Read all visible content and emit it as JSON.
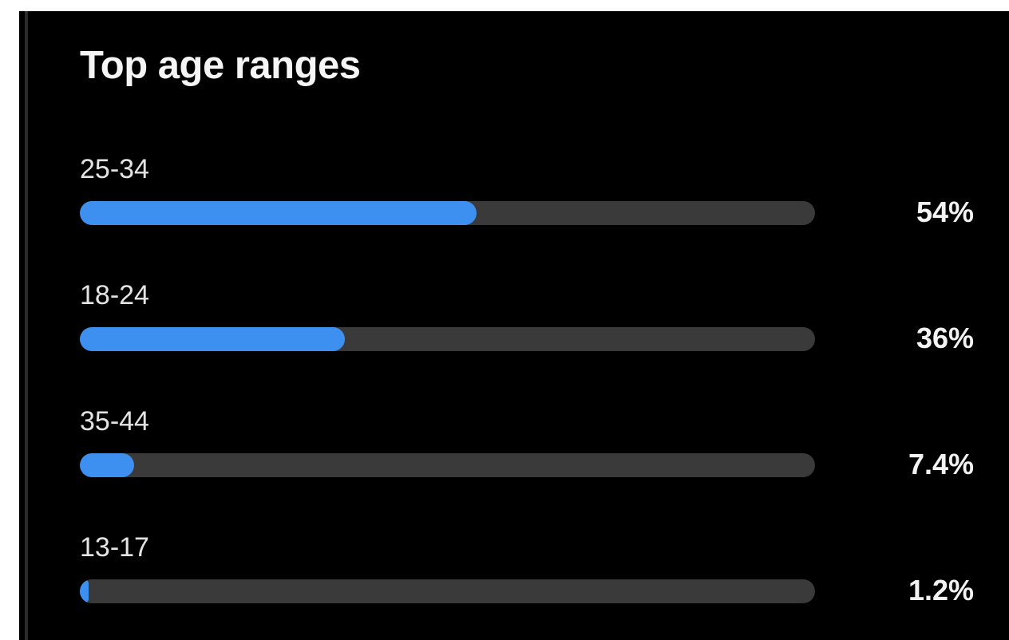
{
  "card": {
    "title": "Top age ranges"
  },
  "colors": {
    "background": "#000000",
    "bar_fill": "#3d8ff0",
    "bar_track": "#3a3a3a",
    "text": "#f2f2f2"
  },
  "chart_data": {
    "type": "bar",
    "orientation": "horizontal",
    "title": "Top age ranges",
    "categories": [
      "25-34",
      "18-24",
      "35-44",
      "13-17"
    ],
    "values": [
      54,
      36,
      7.4,
      1.2
    ],
    "value_labels": [
      "54%",
      "36%",
      "7.4%",
      "1.2%"
    ],
    "xlim": [
      0,
      100
    ],
    "grid": false,
    "legend": "none"
  }
}
